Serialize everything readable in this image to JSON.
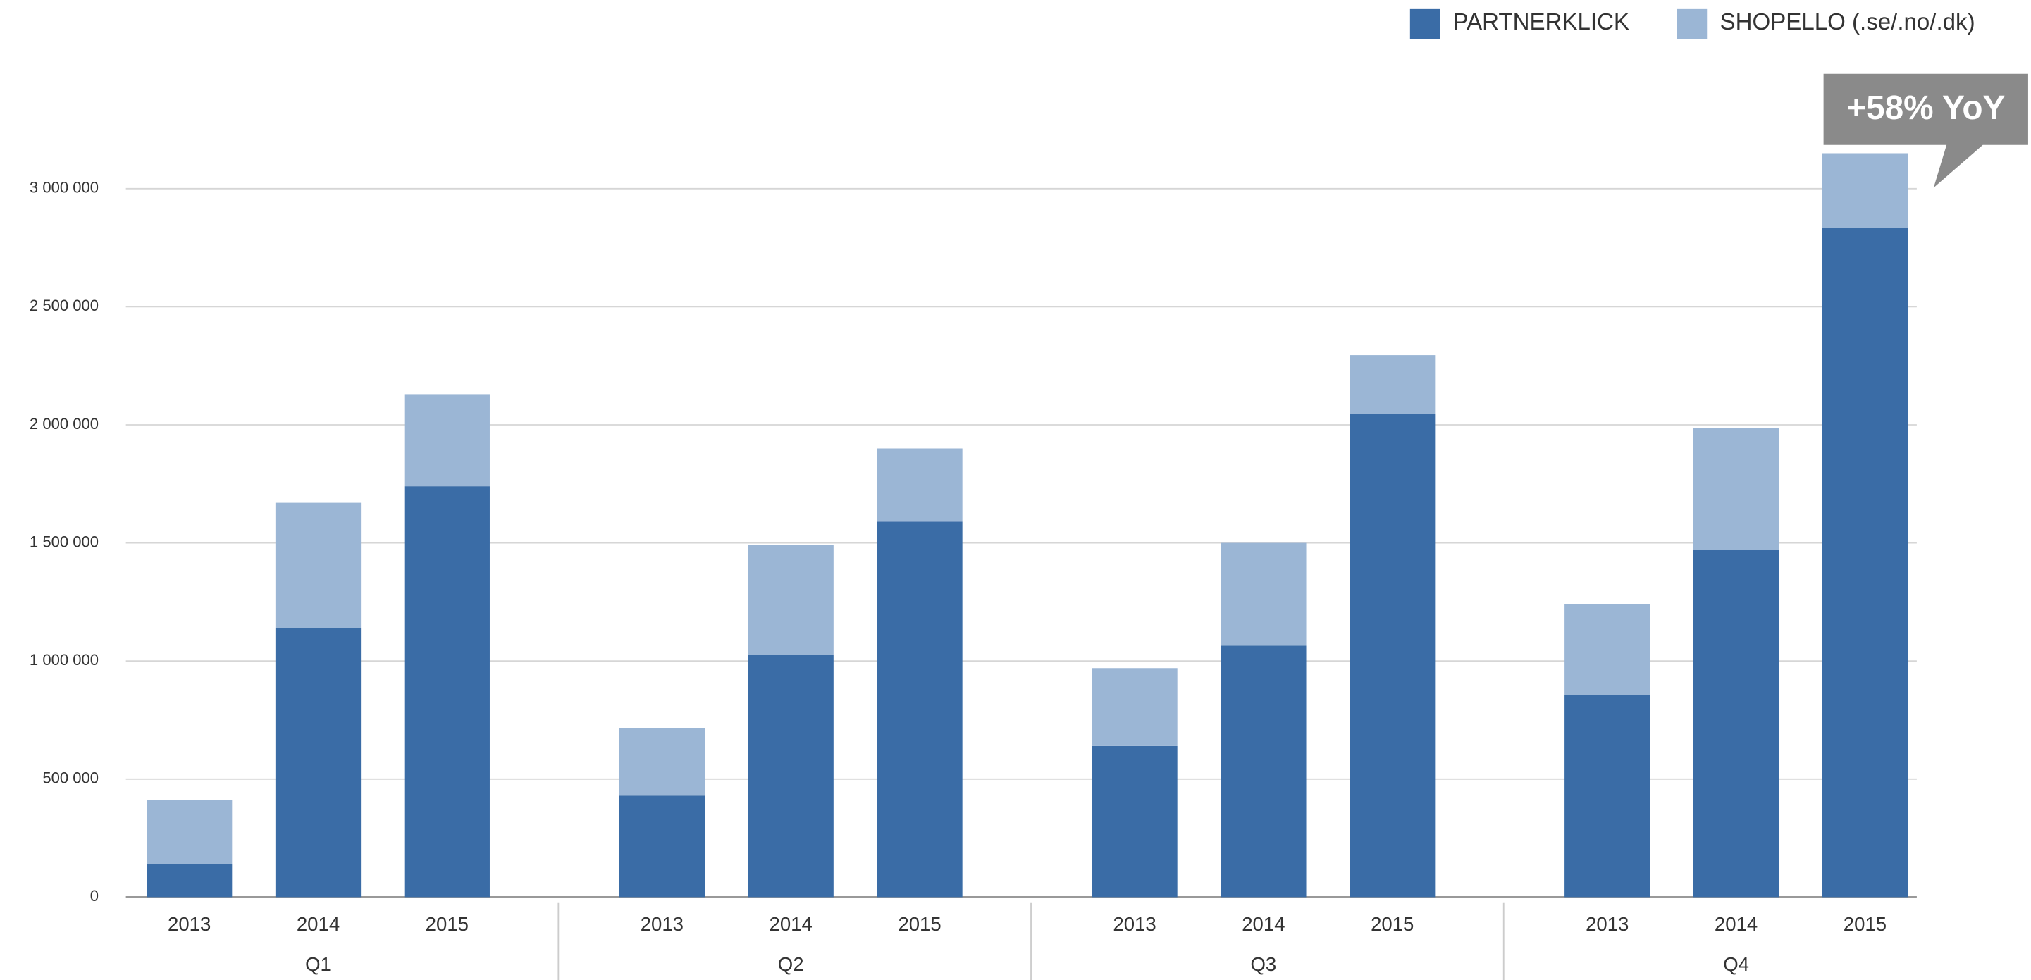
{
  "chart_data": {
    "type": "stacked_bar",
    "groups": [
      "Q1",
      "Q2",
      "Q3",
      "Q4"
    ],
    "categories": [
      "2013",
      "2014",
      "2015",
      "2013",
      "2014",
      "2015",
      "2013",
      "2014",
      "2015",
      "2013",
      "2014",
      "2015"
    ],
    "series": [
      {
        "name": "PARTNERKLICK",
        "color": "#3a6ca6",
        "values": [
          140000,
          1140000,
          1740000,
          430000,
          1025000,
          1590000,
          640000,
          1065000,
          2045000,
          855000,
          1470000,
          2835000
        ]
      },
      {
        "name": "SHOPELLO (.se/.no/.dk)",
        "color": "#9bb6d5",
        "values": [
          270000,
          530000,
          390000,
          285000,
          465000,
          310000,
          330000,
          435000,
          250000,
          385000,
          515000,
          315000
        ]
      }
    ],
    "ylim": [
      0,
      3300000
    ],
    "yticks": [
      0,
      {
        "value": 500000,
        "label": "500 000"
      },
      {
        "value": 1000000,
        "label": "1 000 000"
      },
      {
        "value": 1500000,
        "label": "1 500 000"
      },
      {
        "value": 2000000,
        "label": "2 000 000"
      },
      {
        "value": 2500000,
        "label": "2 500 000"
      },
      {
        "value": 3000000,
        "label": "3 000 000"
      }
    ],
    "grid": true,
    "legend": "top-right",
    "annotation": "+58% YoY"
  }
}
